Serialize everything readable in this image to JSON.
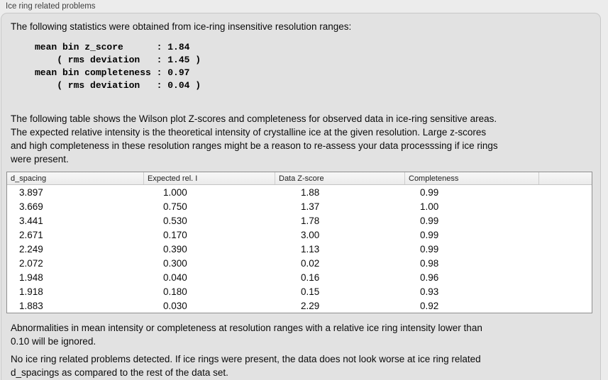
{
  "colors": {
    "page_bg": "#ececec",
    "panel_bg": "#e2e2e2",
    "panel_border": "#c8c8c8",
    "table_border": "#8f8f8f"
  },
  "panel": {
    "title": "Ice ring related problems",
    "intro": "The following statistics were obtained from ice-ring insensitive resolution ranges:",
    "stats_block": "mean bin z_score      : 1.84\n    ( rms deviation   : 1.45 )\nmean bin completeness : 0.97\n    ( rms deviation   : 0.04 )",
    "table_note": "The following table shows the Wilson plot Z-scores and completeness for observed data in ice-ring sensitive areas.\nThe expected relative intensity is the theoretical intensity of crystalline ice at the given resolution. Large z-scores\nand high completeness in these resolution ranges might be a reason to re-assess your data processsing if ice rings\nwere present.",
    "footer_note_1": "Abnormalities in mean intensity or completeness at resolution ranges with a relative ice ring intensity lower than\n0.10 will be ignored.",
    "footer_note_2": "No ice ring related problems detected. If ice rings were present, the data does not look worse at ice ring related\nd_spacings as compared to the rest of the data set."
  },
  "table": {
    "columns": [
      "d_spacing",
      "Expected rel. I",
      "Data Z-score",
      "Completeness",
      ""
    ],
    "rows": [
      [
        "3.897",
        "1.000",
        "1.88",
        "0.99"
      ],
      [
        "3.669",
        "0.750",
        "1.37",
        "1.00"
      ],
      [
        "3.441",
        "0.530",
        "1.78",
        "0.99"
      ],
      [
        "2.671",
        "0.170",
        "3.00",
        "0.99"
      ],
      [
        "2.249",
        "0.390",
        "1.13",
        "0.99"
      ],
      [
        "2.072",
        "0.300",
        "0.02",
        "0.98"
      ],
      [
        "1.948",
        "0.040",
        "0.16",
        "0.96"
      ],
      [
        "1.918",
        "0.180",
        "0.15",
        "0.93"
      ],
      [
        "1.883",
        "0.030",
        "2.29",
        "0.92"
      ]
    ]
  }
}
